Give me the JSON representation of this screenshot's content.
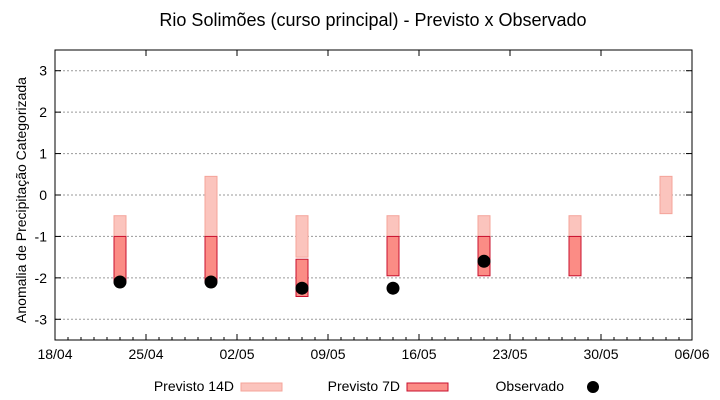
{
  "chart_data": {
    "type": "bar",
    "title": "Rio Solimões (curso principal) - Previsto x Observado",
    "xlabel": "",
    "ylabel": "Anomalia de Precipitação Categorizada",
    "x_axis": {
      "type": "date",
      "range": [
        "2024-04-18",
        "2024-06-06"
      ],
      "ticks": [
        {
          "date": "2024-04-18",
          "label": "18/04"
        },
        {
          "date": "2024-04-25",
          "label": "25/04"
        },
        {
          "date": "2024-05-02",
          "label": "02/05"
        },
        {
          "date": "2024-05-09",
          "label": "09/05"
        },
        {
          "date": "2024-05-16",
          "label": "16/05"
        },
        {
          "date": "2024-05-23",
          "label": "23/05"
        },
        {
          "date": "2024-05-30",
          "label": "30/05"
        },
        {
          "date": "2024-06-06",
          "label": "06/06"
        }
      ]
    },
    "ylim": [
      -3.5,
      3.5
    ],
    "yticks": [
      -3,
      -2,
      -1,
      0,
      1,
      2,
      3
    ],
    "grid": "horizontal dotted",
    "legend": "bottom",
    "series": [
      {
        "name": "Previsto 14D",
        "kind": "range-bar",
        "color_fill": "#fbc4bd",
        "color_edge": "#f4a49a",
        "ranges": [
          {
            "date": "2024-04-23",
            "low": -1.0,
            "high": -0.5
          },
          {
            "date": "2024-04-30",
            "low": -1.0,
            "high": 0.45
          },
          {
            "date": "2024-05-07",
            "low": -1.5,
            "high": -0.5
          },
          {
            "date": "2024-05-14",
            "low": -1.0,
            "high": -0.5
          },
          {
            "date": "2024-05-21",
            "low": -1.0,
            "high": -0.5
          },
          {
            "date": "2024-05-28",
            "low": -1.0,
            "high": -0.5
          },
          {
            "date": "2024-06-04",
            "low": -0.45,
            "high": 0.45
          }
        ]
      },
      {
        "name": "Previsto 7D",
        "kind": "range-bar",
        "color_fill": "#fb8c85",
        "color_edge": "#c8102e",
        "ranges": [
          {
            "date": "2024-04-23",
            "low": -2.1,
            "high": -1.0
          },
          {
            "date": "2024-04-30",
            "low": -2.1,
            "high": -1.0
          },
          {
            "date": "2024-05-07",
            "low": -2.45,
            "high": -1.55
          },
          {
            "date": "2024-05-14",
            "low": -1.95,
            "high": -1.0
          },
          {
            "date": "2024-05-21",
            "low": -1.95,
            "high": -1.0
          },
          {
            "date": "2024-05-28",
            "low": -1.95,
            "high": -1.0
          }
        ]
      },
      {
        "name": "Observado",
        "kind": "point",
        "color": "#000000",
        "points": [
          {
            "date": "2024-04-23",
            "value": -2.1
          },
          {
            "date": "2024-04-30",
            "value": -2.1
          },
          {
            "date": "2024-05-07",
            "value": -2.25
          },
          {
            "date": "2024-05-14",
            "value": -2.25
          },
          {
            "date": "2024-05-21",
            "value": -1.6
          }
        ]
      }
    ]
  }
}
